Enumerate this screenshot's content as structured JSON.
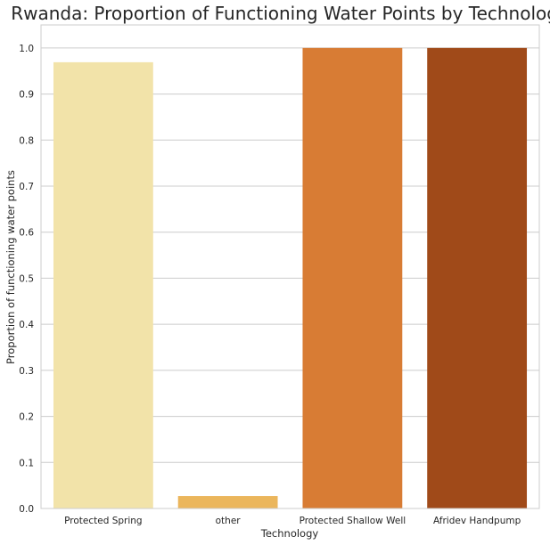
{
  "chart_data": {
    "type": "bar",
    "title": "Rwanda: Proportion of Functioning Water Points by Technology",
    "xlabel": "Technology",
    "ylabel": "Proportion of functioning water points",
    "categories": [
      "Protected Spring",
      "other",
      "Protected Shallow Well",
      "Afridev Handpump"
    ],
    "values": [
      0.969,
      0.027,
      1.0,
      1.0
    ],
    "colors": [
      "#f2e3a9",
      "#ebb65c",
      "#d87c34",
      "#a04a19"
    ],
    "ylim": [
      0,
      1.05
    ],
    "yticks": [
      "0.0",
      "0.1",
      "0.2",
      "0.3",
      "0.4",
      "0.5",
      "0.6",
      "0.7",
      "0.8",
      "0.9",
      "1.0"
    ],
    "grid": "horizontal",
    "legend": "none"
  }
}
